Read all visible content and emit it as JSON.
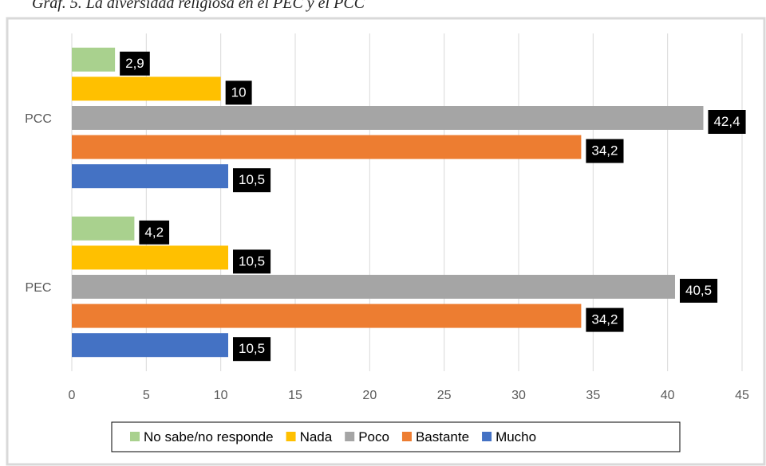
{
  "chart_data": {
    "type": "bar",
    "orientation": "horizontal",
    "title": "Graf. 5. La diversidad religiosa en el PEC y el PCC",
    "categories": [
      "PEC",
      "PCC"
    ],
    "series": [
      {
        "name": "Mucho",
        "color": "#4472c4",
        "values": [
          10.5,
          10.5
        ],
        "value_labels": [
          "10,5",
          "10,5"
        ]
      },
      {
        "name": "Bastante",
        "color": "#ed7d31",
        "values": [
          34.2,
          34.2
        ],
        "value_labels": [
          "34,2",
          "34,2"
        ]
      },
      {
        "name": "Poco",
        "color": "#a5a5a5",
        "values": [
          40.5,
          42.4
        ],
        "value_labels": [
          "40,5",
          "42,4"
        ]
      },
      {
        "name": "Nada",
        "color": "#ffc000",
        "values": [
          10.5,
          10
        ],
        "value_labels": [
          "10,5",
          "10"
        ]
      },
      {
        "name": "No sabe/no responde",
        "color": "#a9d18e",
        "values": [
          4.2,
          2.9
        ],
        "value_labels": [
          "4,2",
          "2,9"
        ]
      }
    ],
    "xlim": [
      0,
      45
    ],
    "xticks": [
      0,
      5,
      10,
      15,
      20,
      25,
      30,
      35,
      40,
      45
    ],
    "grid": true,
    "legend": "bottom"
  }
}
